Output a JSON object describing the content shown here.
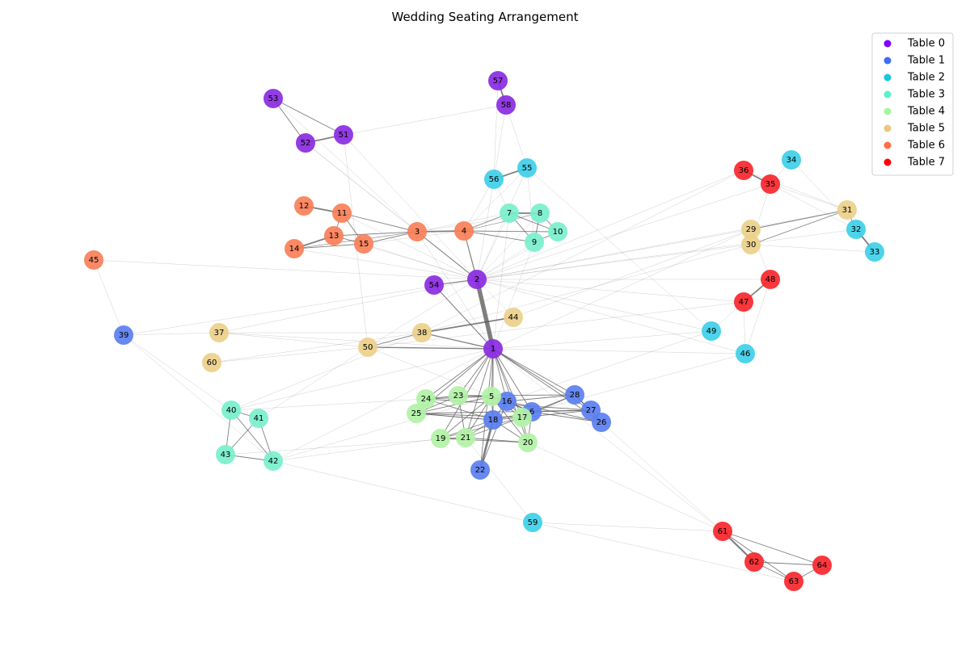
{
  "title": "Wedding Seating Arrangement",
  "tables": [
    {
      "id": 0,
      "label": "Table 0",
      "legend_color": "#7f00ff",
      "node_color": "#8a2be2"
    },
    {
      "id": 1,
      "label": "Table 1",
      "legend_color": "#3f6ef5",
      "node_color": "#5b7ff0"
    },
    {
      "id": 2,
      "label": "Table 2",
      "legend_color": "#1ac4e0",
      "node_color": "#3ecfe8"
    },
    {
      "id": 3,
      "label": "Table 3",
      "legend_color": "#5cf2c8",
      "node_color": "#78f0cc"
    },
    {
      "id": 4,
      "label": "Table 4",
      "legend_color": "#a8f5a0",
      "node_color": "#b2f2a6"
    },
    {
      "id": 5,
      "label": "Table 5",
      "legend_color": "#e8c87c",
      "node_color": "#ecd08a"
    },
    {
      "id": 6,
      "label": "Table 6",
      "legend_color": "#ff6e44",
      "node_color": "#fa7f58"
    },
    {
      "id": 7,
      "label": "Table 7",
      "legend_color": "#ff0000",
      "node_color": "#f9262d"
    }
  ],
  "guests": [
    {
      "id": 1,
      "table": 0
    },
    {
      "id": 2,
      "table": 0
    },
    {
      "id": 51,
      "table": 0
    },
    {
      "id": 52,
      "table": 0
    },
    {
      "id": 53,
      "table": 0
    },
    {
      "id": 54,
      "table": 0
    },
    {
      "id": 57,
      "table": 0
    },
    {
      "id": 58,
      "table": 0
    },
    {
      "id": 6,
      "table": 1
    },
    {
      "id": 16,
      "table": 1
    },
    {
      "id": 18,
      "table": 1
    },
    {
      "id": 22,
      "table": 1
    },
    {
      "id": 26,
      "table": 1
    },
    {
      "id": 27,
      "table": 1
    },
    {
      "id": 28,
      "table": 1
    },
    {
      "id": 39,
      "table": 1
    },
    {
      "id": 32,
      "table": 2
    },
    {
      "id": 33,
      "table": 2
    },
    {
      "id": 34,
      "table": 2
    },
    {
      "id": 46,
      "table": 2
    },
    {
      "id": 49,
      "table": 2
    },
    {
      "id": 55,
      "table": 2
    },
    {
      "id": 56,
      "table": 2
    },
    {
      "id": 59,
      "table": 2
    },
    {
      "id": 7,
      "table": 3
    },
    {
      "id": 8,
      "table": 3
    },
    {
      "id": 9,
      "table": 3
    },
    {
      "id": 10,
      "table": 3
    },
    {
      "id": 40,
      "table": 3
    },
    {
      "id": 41,
      "table": 3
    },
    {
      "id": 42,
      "table": 3
    },
    {
      "id": 43,
      "table": 3
    },
    {
      "id": 5,
      "table": 4
    },
    {
      "id": 17,
      "table": 4
    },
    {
      "id": 19,
      "table": 4
    },
    {
      "id": 20,
      "table": 4
    },
    {
      "id": 21,
      "table": 4
    },
    {
      "id": 23,
      "table": 4
    },
    {
      "id": 24,
      "table": 4
    },
    {
      "id": 25,
      "table": 4
    },
    {
      "id": 29,
      "table": 5
    },
    {
      "id": 30,
      "table": 5
    },
    {
      "id": 31,
      "table": 5
    },
    {
      "id": 37,
      "table": 5
    },
    {
      "id": 38,
      "table": 5
    },
    {
      "id": 44,
      "table": 5
    },
    {
      "id": 50,
      "table": 5
    },
    {
      "id": 60,
      "table": 5
    },
    {
      "id": 3,
      "table": 6
    },
    {
      "id": 4,
      "table": 6
    },
    {
      "id": 11,
      "table": 6
    },
    {
      "id": 12,
      "table": 6
    },
    {
      "id": 13,
      "table": 6
    },
    {
      "id": 14,
      "table": 6
    },
    {
      "id": 15,
      "table": 6
    },
    {
      "id": 45,
      "table": 6
    },
    {
      "id": 35,
      "table": 7
    },
    {
      "id": 36,
      "table": 7
    },
    {
      "id": 47,
      "table": 7
    },
    {
      "id": 48,
      "table": 7
    },
    {
      "id": 61,
      "table": 7
    },
    {
      "id": 62,
      "table": 7
    },
    {
      "id": 63,
      "table": 7
    },
    {
      "id": 64,
      "table": 7
    }
  ],
  "relationships": [
    [
      1,
      2,
      6
    ],
    [
      1,
      38,
      1.5
    ],
    [
      1,
      50,
      1.5
    ],
    [
      1,
      54,
      1.2
    ],
    [
      1,
      5,
      1
    ],
    [
      1,
      16,
      1
    ],
    [
      1,
      18,
      1
    ],
    [
      1,
      6,
      1
    ],
    [
      1,
      17,
      1
    ],
    [
      1,
      20,
      1
    ],
    [
      1,
      21,
      1
    ],
    [
      1,
      19,
      1
    ],
    [
      1,
      23,
      1
    ],
    [
      1,
      24,
      1
    ],
    [
      1,
      25,
      1
    ],
    [
      1,
      26,
      1
    ],
    [
      1,
      27,
      1
    ],
    [
      1,
      28,
      1
    ],
    [
      1,
      22,
      1
    ],
    [
      1,
      49,
      0.3
    ],
    [
      1,
      46,
      0.3
    ],
    [
      1,
      40,
      0.3
    ],
    [
      1,
      42,
      0.3
    ],
    [
      1,
      37,
      0.3
    ],
    [
      1,
      29,
      0.3
    ],
    [
      1,
      7,
      0.3
    ],
    [
      1,
      9,
      0.3
    ],
    [
      1,
      4,
      0.3
    ],
    [
      1,
      3,
      0.3
    ],
    [
      1,
      61,
      0.3
    ],
    [
      2,
      3,
      1.2
    ],
    [
      2,
      4,
      1.2
    ],
    [
      2,
      54,
      1.2
    ],
    [
      2,
      7,
      0.4
    ],
    [
      2,
      8,
      0.4
    ],
    [
      2,
      9,
      0.4
    ],
    [
      2,
      10,
      0.4
    ],
    [
      2,
      11,
      0.3
    ],
    [
      2,
      13,
      0.3
    ],
    [
      2,
      15,
      0.3
    ],
    [
      2,
      14,
      0.3
    ],
    [
      2,
      45,
      0.3
    ],
    [
      2,
      52,
      0.3
    ],
    [
      2,
      51,
      0.3
    ],
    [
      2,
      31,
      0.3
    ],
    [
      2,
      30,
      0.3
    ],
    [
      2,
      29,
      0.3
    ],
    [
      2,
      36,
      0.3
    ],
    [
      2,
      48,
      0.3
    ],
    [
      2,
      47,
      0.3
    ],
    [
      2,
      49,
      0.3
    ],
    [
      2,
      46,
      0.3
    ],
    [
      2,
      39,
      0.3
    ],
    [
      2,
      37,
      0.3
    ],
    [
      2,
      50,
      0.3
    ],
    [
      2,
      55,
      0.3
    ],
    [
      2,
      56,
      0.3
    ],
    [
      2,
      32,
      0.3
    ],
    [
      2,
      35,
      0.3
    ],
    [
      3,
      4,
      2
    ],
    [
      3,
      11,
      1
    ],
    [
      3,
      13,
      1
    ],
    [
      3,
      15,
      1
    ],
    [
      3,
      14,
      0.5
    ],
    [
      3,
      7,
      0.3
    ],
    [
      3,
      53,
      0.3
    ],
    [
      3,
      52,
      0.3
    ],
    [
      3,
      8,
      0.3
    ],
    [
      4,
      7,
      1
    ],
    [
      4,
      9,
      1
    ],
    [
      4,
      10,
      1
    ],
    [
      4,
      8,
      0.5
    ],
    [
      4,
      15,
      0.3
    ],
    [
      4,
      56,
      0.3
    ],
    [
      4,
      55,
      0.3
    ],
    [
      11,
      12,
      2
    ],
    [
      11,
      13,
      1
    ],
    [
      11,
      15,
      1
    ],
    [
      13,
      14,
      2
    ],
    [
      13,
      15,
      1
    ],
    [
      14,
      15,
      1
    ],
    [
      7,
      8,
      2
    ],
    [
      7,
      9,
      1
    ],
    [
      7,
      10,
      1
    ],
    [
      8,
      10,
      1
    ],
    [
      8,
      9,
      1
    ],
    [
      9,
      10,
      1
    ],
    [
      7,
      56,
      0.3
    ],
    [
      9,
      55,
      0.3
    ],
    [
      51,
      52,
      2
    ],
    [
      51,
      53,
      1
    ],
    [
      52,
      53,
      1
    ],
    [
      51,
      58,
      0.3
    ],
    [
      51,
      50,
      0.3
    ],
    [
      57,
      58,
      2
    ],
    [
      58,
      56,
      0.3
    ],
    [
      58,
      55,
      0.3
    ],
    [
      57,
      56,
      0.3
    ],
    [
      56,
      55,
      2
    ],
    [
      55,
      49,
      0.3
    ],
    [
      36,
      35,
      2
    ],
    [
      35,
      34,
      0.3
    ],
    [
      35,
      31,
      0.3
    ],
    [
      35,
      30,
      0.3
    ],
    [
      35,
      32,
      0.3
    ],
    [
      36,
      31,
      0.3
    ],
    [
      36,
      38,
      0.3
    ],
    [
      34,
      32,
      0.3
    ],
    [
      31,
      32,
      1
    ],
    [
      31,
      29,
      1
    ],
    [
      31,
      30,
      1
    ],
    [
      32,
      33,
      2
    ],
    [
      33,
      30,
      0.3
    ],
    [
      29,
      48,
      0.3
    ],
    [
      29,
      44,
      0.3
    ],
    [
      30,
      38,
      0.3
    ],
    [
      48,
      47,
      2
    ],
    [
      47,
      46,
      0.3
    ],
    [
      48,
      46,
      0.3
    ],
    [
      47,
      49,
      0.3
    ],
    [
      47,
      50,
      0.3
    ],
    [
      38,
      44,
      2
    ],
    [
      38,
      50,
      1
    ],
    [
      50,
      37,
      0.3
    ],
    [
      50,
      60,
      0.3
    ],
    [
      38,
      60,
      0.3
    ],
    [
      38,
      37,
      0.3
    ],
    [
      44,
      2,
      0.3
    ],
    [
      50,
      41,
      0.3
    ],
    [
      38,
      40,
      0.3
    ],
    [
      50,
      5,
      0.3
    ],
    [
      45,
      39,
      0.3
    ],
    [
      39,
      40,
      0.3
    ],
    [
      39,
      42,
      0.3
    ],
    [
      39,
      37,
      0.3
    ],
    [
      40,
      41,
      1
    ],
    [
      40,
      42,
      1
    ],
    [
      40,
      43,
      1
    ],
    [
      41,
      43,
      1
    ],
    [
      41,
      42,
      1
    ],
    [
      43,
      42,
      1
    ],
    [
      43,
      21,
      0.3
    ],
    [
      42,
      19,
      0.3
    ],
    [
      42,
      59,
      0.3
    ],
    [
      42,
      5,
      0.3
    ],
    [
      40,
      24,
      0.3
    ],
    [
      5,
      16,
      1
    ],
    [
      5,
      18,
      1
    ],
    [
      5,
      17,
      1
    ],
    [
      5,
      6,
      1
    ],
    [
      5,
      24,
      1
    ],
    [
      5,
      23,
      1
    ],
    [
      5,
      21,
      1
    ],
    [
      5,
      20,
      1
    ],
    [
      5,
      19,
      1
    ],
    [
      5,
      25,
      1
    ],
    [
      16,
      18,
      1
    ],
    [
      16,
      6,
      1
    ],
    [
      16,
      17,
      1
    ],
    [
      16,
      22,
      1
    ],
    [
      16,
      26,
      1
    ],
    [
      16,
      28,
      1
    ],
    [
      18,
      22,
      3
    ],
    [
      18,
      21,
      1
    ],
    [
      18,
      19,
      1
    ],
    [
      18,
      20,
      1
    ],
    [
      18,
      17,
      1
    ],
    [
      18,
      6,
      1
    ],
    [
      18,
      24,
      1
    ],
    [
      18,
      25,
      1
    ],
    [
      6,
      17,
      1
    ],
    [
      6,
      27,
      1
    ],
    [
      6,
      26,
      1
    ],
    [
      6,
      28,
      1
    ],
    [
      6,
      20,
      1
    ],
    [
      17,
      20,
      1
    ],
    [
      17,
      21,
      1
    ],
    [
      17,
      19,
      1
    ],
    [
      17,
      25,
      1
    ],
    [
      17,
      27,
      1
    ],
    [
      17,
      28,
      1
    ],
    [
      19,
      21,
      1
    ],
    [
      19,
      20,
      1
    ],
    [
      21,
      20,
      1
    ],
    [
      21,
      23,
      1
    ],
    [
      24,
      23,
      1
    ],
    [
      24,
      25,
      1
    ],
    [
      23,
      25,
      1
    ],
    [
      24,
      27,
      1
    ],
    [
      25,
      27,
      1
    ],
    [
      23,
      28,
      1
    ],
    [
      25,
      18,
      0.5
    ],
    [
      27,
      26,
      1
    ],
    [
      27,
      28,
      1
    ],
    [
      28,
      26,
      1
    ],
    [
      20,
      61,
      0.3
    ],
    [
      26,
      61,
      0.3
    ],
    [
      21,
      59,
      0.3
    ],
    [
      16,
      49,
      0.3
    ],
    [
      6,
      46,
      0.3
    ],
    [
      59,
      61,
      0.3
    ],
    [
      59,
      63,
      0.3
    ],
    [
      61,
      62,
      2.5
    ],
    [
      61,
      64,
      1
    ],
    [
      61,
      63,
      1
    ],
    [
      62,
      64,
      1
    ],
    [
      62,
      63,
      1
    ],
    [
      63,
      64,
      1
    ]
  ]
}
